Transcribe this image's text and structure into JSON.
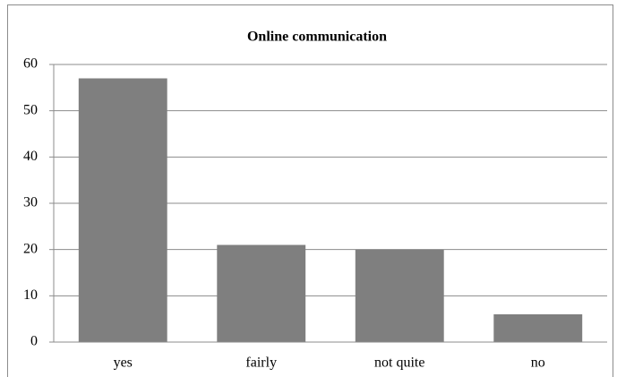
{
  "chart_data": {
    "type": "bar",
    "title": "Online communication",
    "categories": [
      "yes",
      "fairly",
      "not quite",
      "no"
    ],
    "values": [
      57,
      21,
      20,
      6
    ],
    "color": "#7f7f7f",
    "ylim": [
      0,
      60
    ],
    "yticks": [
      0,
      10,
      20,
      30,
      40,
      50,
      60
    ],
    "grid": true
  }
}
